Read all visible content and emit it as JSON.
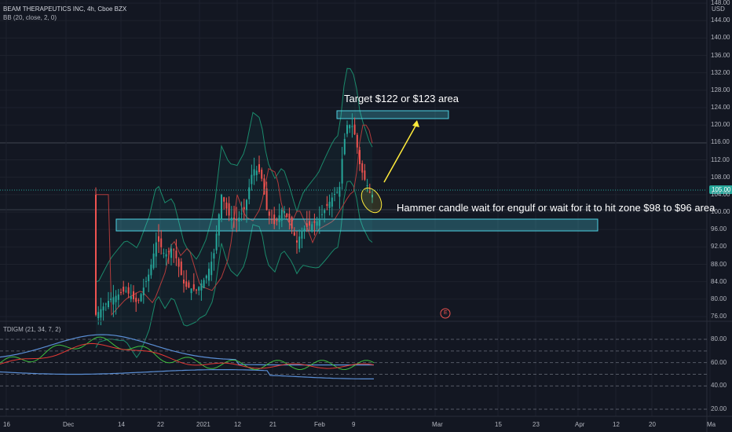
{
  "header": {
    "symbol_title": "BEAM THERAPEUTICS INC, 4h, Cboe BZX",
    "indicator": "BB (20, close, 2, 0)",
    "currency": "USD"
  },
  "pane2": {
    "indicator": "TDIGM (21, 34, 7, 2)",
    "ticks": [
      "80.00",
      "60.00",
      "40.00",
      "20.00"
    ]
  },
  "annotations": {
    "target": "Target $122 or $123 area",
    "hammer": "Hammer candle wait for engulf or wait for it to hit zone $98 to $96 area",
    "earnings_marker": "E"
  },
  "last_price": "105.00",
  "colors": {
    "background": "#131722",
    "up": "#26a69a",
    "down": "#ef5350",
    "zone": "#4dd0e1",
    "arrow": "#ffeb3b",
    "band": "#1b8a6b",
    "tdi_blue": "#5b8fd6",
    "tdi_green": "#3fbf3f",
    "tdi_red": "#e53935"
  },
  "chart_data": {
    "type": "candlestick",
    "price_axis_ticks": [
      "148.00",
      "144.00",
      "140.00",
      "136.00",
      "132.00",
      "128.00",
      "124.00",
      "120.00",
      "116.00",
      "112.00",
      "108.00",
      "104.00",
      "100.00",
      "96.00",
      "92.00",
      "88.00",
      "84.00",
      "80.00",
      "76.00"
    ],
    "time_axis_labels": [
      "16",
      "Dec",
      "14",
      "22",
      "2021",
      "12",
      "21",
      "Feb",
      "9",
      "Mar",
      "15",
      "23",
      "Apr",
      "12",
      "20",
      "Ma"
    ],
    "ylim": [
      75,
      149
    ],
    "zones": [
      {
        "label": "target",
        "low": 122,
        "high": 123
      },
      {
        "label": "support",
        "low": 96,
        "high": 98
      }
    ]
  }
}
